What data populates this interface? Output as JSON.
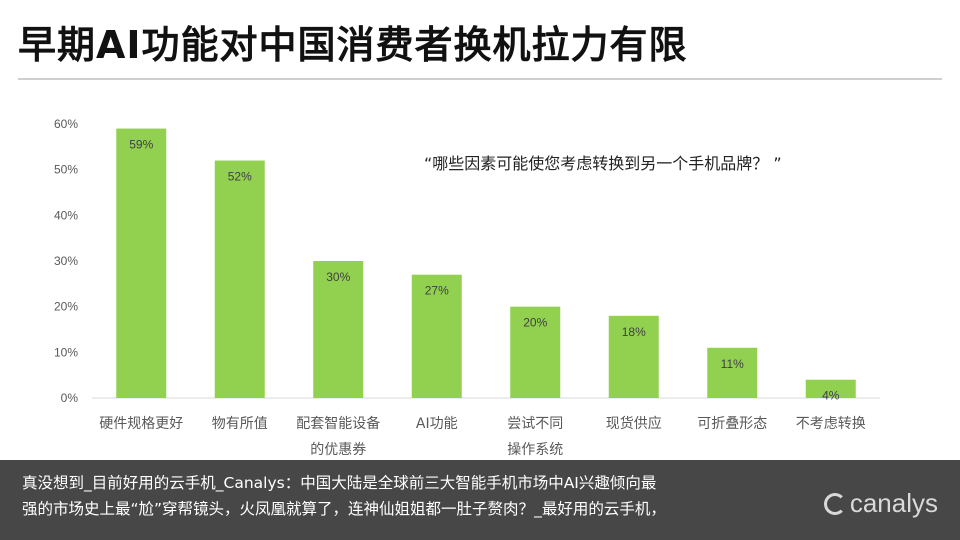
{
  "title": "早期AI功能对中国消费者换机拉力有限",
  "question": "“哪些因素可能使您考虑转换到另一个手机品牌？ ”",
  "caption": {
    "line1": "真没想到_目前好用的云手机_Canalys：中国大陆是全球前三大智能手机市场中AI兴趣倾向最",
    "line2": "强的市场史上最“尬”穿帮镜头，火凤凰就算了，连神仙姐姐都一肚子赘肉？_最好用的云手机，"
  },
  "logo": {
    "text": "canalys",
    "icon": "canalys-logo-icon"
  },
  "colors": {
    "bar": "#92d050",
    "axis": "#d9d9d9",
    "text": "#595959"
  },
  "chart_data": {
    "type": "bar",
    "categories": [
      "硬件规格更好",
      "物有所值",
      "配套智能设备的优惠券",
      "AI功能",
      "尝试不同操作系统",
      "现货供应",
      "可折叠形态",
      "不考虑转换"
    ],
    "category_lines": [
      [
        "硬件规格更好"
      ],
      [
        "物有所值"
      ],
      [
        "配套智能设备",
        "的优惠券"
      ],
      [
        "AI功能"
      ],
      [
        "尝试不同",
        "操作系统"
      ],
      [
        "现货供应"
      ],
      [
        "可折叠形态"
      ],
      [
        "不考虑转换"
      ]
    ],
    "values": [
      59,
      52,
      30,
      27,
      20,
      18,
      11,
      4
    ],
    "value_labels": [
      "59%",
      "52%",
      "30%",
      "27%",
      "20%",
      "18%",
      "11%",
      "4%"
    ],
    "y_ticks": [
      0,
      10,
      20,
      30,
      40,
      50,
      60
    ],
    "y_tick_labels": [
      "0%",
      "10%",
      "20%",
      "30%",
      "40%",
      "50%",
      "60%"
    ],
    "ylim": [
      0,
      60
    ],
    "grid": false
  }
}
